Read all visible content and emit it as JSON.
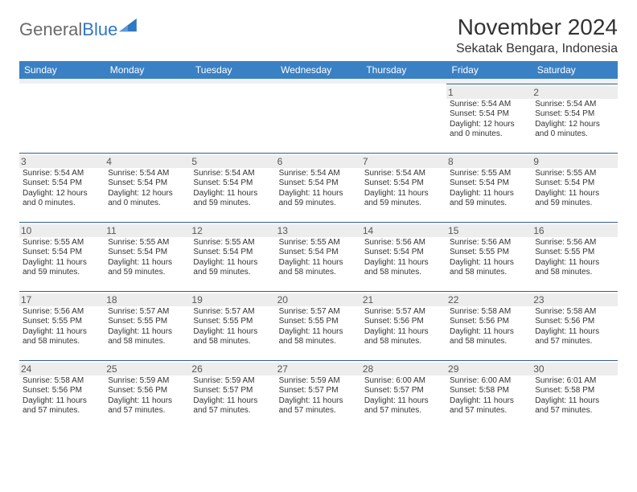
{
  "logo": {
    "text1": "General",
    "text2": "Blue"
  },
  "header": {
    "month_title": "November 2024",
    "location": "Sekatak Bengara, Indonesia"
  },
  "colors": {
    "header_bg": "#3a80c4",
    "header_text": "#ffffff",
    "cell_border": "#2f5f8f",
    "daynum_bg": "#ededed",
    "logo_gray": "#6a6a6a",
    "logo_blue": "#2f78c2"
  },
  "day_headers": [
    "Sunday",
    "Monday",
    "Tuesday",
    "Wednesday",
    "Thursday",
    "Friday",
    "Saturday"
  ],
  "weeks": [
    [
      null,
      null,
      null,
      null,
      null,
      {
        "n": "1",
        "sr": "Sunrise: 5:54 AM",
        "ss": "Sunset: 5:54 PM",
        "dl1": "Daylight: 12 hours",
        "dl2": "and 0 minutes."
      },
      {
        "n": "2",
        "sr": "Sunrise: 5:54 AM",
        "ss": "Sunset: 5:54 PM",
        "dl1": "Daylight: 12 hours",
        "dl2": "and 0 minutes."
      }
    ],
    [
      {
        "n": "3",
        "sr": "Sunrise: 5:54 AM",
        "ss": "Sunset: 5:54 PM",
        "dl1": "Daylight: 12 hours",
        "dl2": "and 0 minutes."
      },
      {
        "n": "4",
        "sr": "Sunrise: 5:54 AM",
        "ss": "Sunset: 5:54 PM",
        "dl1": "Daylight: 12 hours",
        "dl2": "and 0 minutes."
      },
      {
        "n": "5",
        "sr": "Sunrise: 5:54 AM",
        "ss": "Sunset: 5:54 PM",
        "dl1": "Daylight: 11 hours",
        "dl2": "and 59 minutes."
      },
      {
        "n": "6",
        "sr": "Sunrise: 5:54 AM",
        "ss": "Sunset: 5:54 PM",
        "dl1": "Daylight: 11 hours",
        "dl2": "and 59 minutes."
      },
      {
        "n": "7",
        "sr": "Sunrise: 5:54 AM",
        "ss": "Sunset: 5:54 PM",
        "dl1": "Daylight: 11 hours",
        "dl2": "and 59 minutes."
      },
      {
        "n": "8",
        "sr": "Sunrise: 5:55 AM",
        "ss": "Sunset: 5:54 PM",
        "dl1": "Daylight: 11 hours",
        "dl2": "and 59 minutes."
      },
      {
        "n": "9",
        "sr": "Sunrise: 5:55 AM",
        "ss": "Sunset: 5:54 PM",
        "dl1": "Daylight: 11 hours",
        "dl2": "and 59 minutes."
      }
    ],
    [
      {
        "n": "10",
        "sr": "Sunrise: 5:55 AM",
        "ss": "Sunset: 5:54 PM",
        "dl1": "Daylight: 11 hours",
        "dl2": "and 59 minutes."
      },
      {
        "n": "11",
        "sr": "Sunrise: 5:55 AM",
        "ss": "Sunset: 5:54 PM",
        "dl1": "Daylight: 11 hours",
        "dl2": "and 59 minutes."
      },
      {
        "n": "12",
        "sr": "Sunrise: 5:55 AM",
        "ss": "Sunset: 5:54 PM",
        "dl1": "Daylight: 11 hours",
        "dl2": "and 59 minutes."
      },
      {
        "n": "13",
        "sr": "Sunrise: 5:55 AM",
        "ss": "Sunset: 5:54 PM",
        "dl1": "Daylight: 11 hours",
        "dl2": "and 58 minutes."
      },
      {
        "n": "14",
        "sr": "Sunrise: 5:56 AM",
        "ss": "Sunset: 5:54 PM",
        "dl1": "Daylight: 11 hours",
        "dl2": "and 58 minutes."
      },
      {
        "n": "15",
        "sr": "Sunrise: 5:56 AM",
        "ss": "Sunset: 5:55 PM",
        "dl1": "Daylight: 11 hours",
        "dl2": "and 58 minutes."
      },
      {
        "n": "16",
        "sr": "Sunrise: 5:56 AM",
        "ss": "Sunset: 5:55 PM",
        "dl1": "Daylight: 11 hours",
        "dl2": "and 58 minutes."
      }
    ],
    [
      {
        "n": "17",
        "sr": "Sunrise: 5:56 AM",
        "ss": "Sunset: 5:55 PM",
        "dl1": "Daylight: 11 hours",
        "dl2": "and 58 minutes."
      },
      {
        "n": "18",
        "sr": "Sunrise: 5:57 AM",
        "ss": "Sunset: 5:55 PM",
        "dl1": "Daylight: 11 hours",
        "dl2": "and 58 minutes."
      },
      {
        "n": "19",
        "sr": "Sunrise: 5:57 AM",
        "ss": "Sunset: 5:55 PM",
        "dl1": "Daylight: 11 hours",
        "dl2": "and 58 minutes."
      },
      {
        "n": "20",
        "sr": "Sunrise: 5:57 AM",
        "ss": "Sunset: 5:55 PM",
        "dl1": "Daylight: 11 hours",
        "dl2": "and 58 minutes."
      },
      {
        "n": "21",
        "sr": "Sunrise: 5:57 AM",
        "ss": "Sunset: 5:56 PM",
        "dl1": "Daylight: 11 hours",
        "dl2": "and 58 minutes."
      },
      {
        "n": "22",
        "sr": "Sunrise: 5:58 AM",
        "ss": "Sunset: 5:56 PM",
        "dl1": "Daylight: 11 hours",
        "dl2": "and 58 minutes."
      },
      {
        "n": "23",
        "sr": "Sunrise: 5:58 AM",
        "ss": "Sunset: 5:56 PM",
        "dl1": "Daylight: 11 hours",
        "dl2": "and 57 minutes."
      }
    ],
    [
      {
        "n": "24",
        "sr": "Sunrise: 5:58 AM",
        "ss": "Sunset: 5:56 PM",
        "dl1": "Daylight: 11 hours",
        "dl2": "and 57 minutes."
      },
      {
        "n": "25",
        "sr": "Sunrise: 5:59 AM",
        "ss": "Sunset: 5:56 PM",
        "dl1": "Daylight: 11 hours",
        "dl2": "and 57 minutes."
      },
      {
        "n": "26",
        "sr": "Sunrise: 5:59 AM",
        "ss": "Sunset: 5:57 PM",
        "dl1": "Daylight: 11 hours",
        "dl2": "and 57 minutes."
      },
      {
        "n": "27",
        "sr": "Sunrise: 5:59 AM",
        "ss": "Sunset: 5:57 PM",
        "dl1": "Daylight: 11 hours",
        "dl2": "and 57 minutes."
      },
      {
        "n": "28",
        "sr": "Sunrise: 6:00 AM",
        "ss": "Sunset: 5:57 PM",
        "dl1": "Daylight: 11 hours",
        "dl2": "and 57 minutes."
      },
      {
        "n": "29",
        "sr": "Sunrise: 6:00 AM",
        "ss": "Sunset: 5:58 PM",
        "dl1": "Daylight: 11 hours",
        "dl2": "and 57 minutes."
      },
      {
        "n": "30",
        "sr": "Sunrise: 6:01 AM",
        "ss": "Sunset: 5:58 PM",
        "dl1": "Daylight: 11 hours",
        "dl2": "and 57 minutes."
      }
    ]
  ]
}
